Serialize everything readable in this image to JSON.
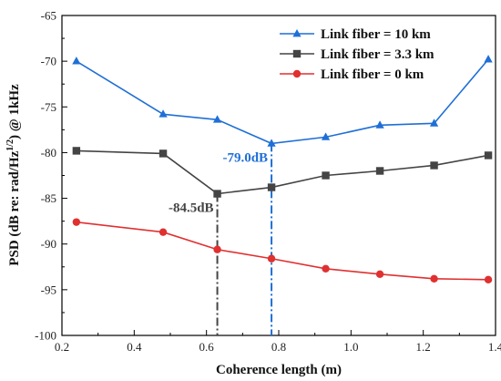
{
  "chart_data": {
    "type": "line",
    "title": "",
    "xlabel": "Coherence length (m)",
    "ylabel": "PSD (dB re: rad/Hz",
    "ylabel_sup": "1/2",
    "ylabel_suffix": ")  @ 1kHz",
    "xlim": [
      0.2,
      1.4
    ],
    "ylim": [
      -100,
      -65
    ],
    "xticks": [
      0.2,
      0.4,
      0.6,
      0.8,
      1.0,
      1.2,
      1.4
    ],
    "xtick_labels": [
      "0.2",
      "0.4",
      "0.6",
      "0.8",
      "1.0",
      "1.2",
      "1.4"
    ],
    "yticks": [
      -100,
      -95,
      -90,
      -85,
      -80,
      -75,
      -70,
      -65
    ],
    "ytick_labels": [
      "-100",
      "-95",
      "-90",
      "-85",
      "-80",
      "-75",
      "-70",
      "-65"
    ],
    "grid": false,
    "legend_position": "top-right",
    "x": [
      0.24,
      0.48,
      0.63,
      0.78,
      0.93,
      1.08,
      1.23,
      1.38
    ],
    "series": [
      {
        "name": "Link fiber = 10 km",
        "color": "#1f6fd6",
        "marker": "triangle",
        "values": [
          -70.0,
          -75.8,
          -76.4,
          -79.0,
          -78.3,
          -77.0,
          -76.8,
          -69.8
        ]
      },
      {
        "name": "Link fiber = 3.3 km",
        "color": "#444444",
        "marker": "square",
        "values": [
          -79.8,
          -80.1,
          -84.5,
          -83.8,
          -82.5,
          -82.0,
          -81.4,
          -80.3
        ]
      },
      {
        "name": "Link fiber = 0 km",
        "color": "#e03030",
        "marker": "circle",
        "values": [
          -87.6,
          -88.7,
          -90.6,
          -91.6,
          -92.7,
          -93.3,
          -93.8,
          -93.9
        ]
      }
    ],
    "annotations": [
      {
        "text": "-79.0dB",
        "x": 0.78,
        "y": -79.0,
        "color": "#1f6fd6",
        "line_style": "dash-dot"
      },
      {
        "text": "-84.5dB",
        "x": 0.63,
        "y": -84.5,
        "color": "#444444",
        "line_style": "dash-dot"
      }
    ]
  }
}
